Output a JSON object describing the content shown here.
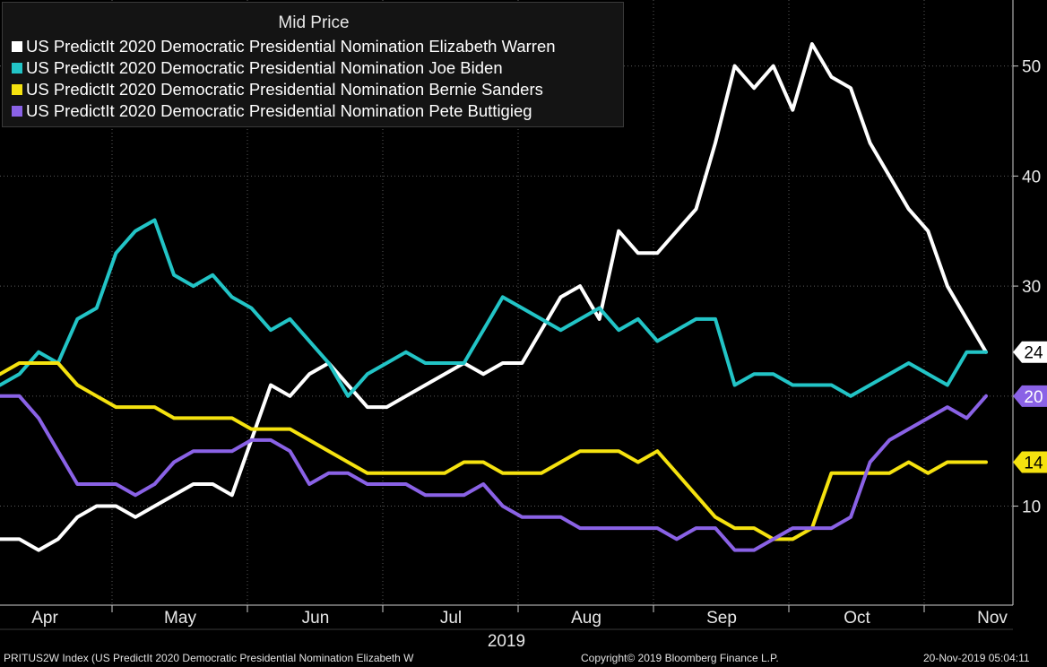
{
  "chart_data": {
    "type": "line",
    "legend_title": "Mid Price",
    "legend_position": "top-left",
    "grid": true,
    "xlabel": "2019",
    "x_ticks": [
      "Apr",
      "May",
      "Jun",
      "Jul",
      "Aug",
      "Sep",
      "Oct",
      "Nov"
    ],
    "y_ticks": [
      10,
      20,
      30,
      40,
      50
    ],
    "ylim": [
      1,
      56
    ],
    "series": [
      {
        "name": "US PredictIt 2020 Democratic Presidential Nomination Elizabeth Warren",
        "color": "#ffffff",
        "last_value": 24,
        "last_label_color": "#000000",
        "values": [
          7,
          7,
          6,
          7,
          9,
          10,
          10,
          9,
          10,
          11,
          12,
          12,
          11,
          16,
          21,
          20,
          22,
          23,
          21,
          19,
          19,
          20,
          21,
          22,
          23,
          22,
          23,
          23,
          26,
          29,
          30,
          27,
          35,
          33,
          33,
          35,
          37,
          43,
          50,
          48,
          50,
          46,
          52,
          49,
          48,
          43,
          40,
          37,
          35,
          30,
          27,
          24
        ]
      },
      {
        "name": "US PredictIt 2020 Democratic Presidential Nomination Joe Biden",
        "color": "#22c4c6",
        "last_value": 24,
        "last_label_color": "#000000",
        "values": [
          21,
          22,
          24,
          23,
          27,
          28,
          33,
          35,
          36,
          31,
          30,
          31,
          29,
          28,
          26,
          27,
          25,
          23,
          20,
          22,
          23,
          24,
          23,
          23,
          23,
          26,
          29,
          28,
          27,
          26,
          27,
          28,
          26,
          27,
          25,
          26,
          27,
          27,
          21,
          22,
          22,
          21,
          21,
          21,
          20,
          21,
          22,
          23,
          22,
          21,
          24,
          24
        ]
      },
      {
        "name": "US PredictIt 2020 Democratic Presidential Nomination Bernie Sanders",
        "color": "#f5e20f",
        "last_value": 14,
        "last_label_color": "#000000",
        "values": [
          22,
          23,
          23,
          23,
          21,
          20,
          19,
          19,
          19,
          18,
          18,
          18,
          18,
          17,
          17,
          17,
          16,
          15,
          14,
          13,
          13,
          13,
          13,
          13,
          14,
          14,
          13,
          13,
          13,
          14,
          15,
          15,
          15,
          14,
          15,
          13,
          11,
          9,
          8,
          8,
          7,
          7,
          8,
          13,
          13,
          13,
          13,
          14,
          13,
          14,
          14,
          14
        ]
      },
      {
        "name": "US PredictIt 2020 Democratic Presidential Nomination Pete Buttigieg",
        "color": "#8a62e6",
        "last_value": 20,
        "last_label_color": "#ffffff",
        "values": [
          20,
          20,
          18,
          15,
          12,
          12,
          12,
          11,
          12,
          14,
          15,
          15,
          15,
          16,
          16,
          15,
          12,
          13,
          13,
          12,
          12,
          12,
          11,
          11,
          11,
          12,
          10,
          9,
          9,
          9,
          8,
          8,
          8,
          8,
          8,
          7,
          8,
          8,
          6,
          6,
          7,
          8,
          8,
          8,
          9,
          14,
          16,
          17,
          18,
          19,
          18,
          20
        ]
      }
    ]
  },
  "footer": {
    "left": "PRITUS2W Index (US PredictIt 2020 Democratic Presidential Nomination Elizabeth W",
    "center": "Copyright© 2019 Bloomberg Finance L.P.",
    "right": "20-Nov-2019 05:04:11"
  }
}
